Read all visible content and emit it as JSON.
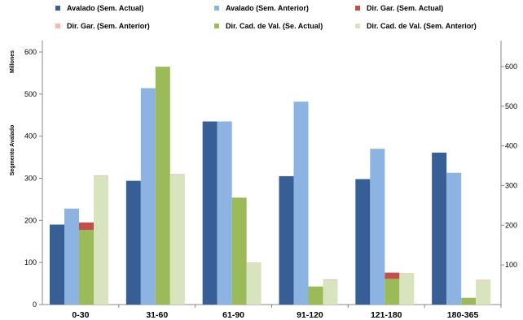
{
  "chart_data": {
    "type": "bar",
    "categories": [
      "0-30",
      "31-60",
      "61-90",
      "91-120",
      "121-180",
      "180-365"
    ],
    "series": [
      {
        "name": "Avalado (Sem. Actual)",
        "color": "#375f95",
        "values": [
          190,
          294,
          435,
          305,
          298,
          361
        ]
      },
      {
        "name": "Avalado (Sem. Anterior)",
        "color": "#8db3e2",
        "values": [
          228,
          514,
          435,
          482,
          370,
          313
        ]
      },
      {
        "name": "Dir. Gar. (Sem. Actual)",
        "color": "#c0504d",
        "stack_on": "Dir. Cad. de Val. (Se. Actual)",
        "values": [
          18,
          0,
          0,
          0,
          15,
          0
        ]
      },
      {
        "name": "Dir. Gar. (Sem. Anterior)",
        "color": "#f2b8b7",
        "stack_on": "Dir. Cad. de Val. (Sem. Anterior)",
        "values": [
          2,
          2,
          1,
          2,
          1,
          2
        ]
      },
      {
        "name": "Dir. Cad. de Val. (Se. Actual)",
        "color": "#9bbb59",
        "values": [
          177,
          565,
          254,
          43,
          61,
          16
        ]
      },
      {
        "name": "Dir. Cad. de Val. (Sem. Anterior)",
        "color": "#d7e4bd",
        "values": [
          305,
          308,
          99,
          58,
          74,
          57
        ]
      }
    ],
    "ylabel": "Segmento Avalado",
    "yunit": "Millones",
    "ylim": [
      0,
      620
    ],
    "yticks": [
      0,
      100,
      200,
      300,
      400,
      500,
      600
    ],
    "ylim_right": [
      0,
      661
    ],
    "yticks_right": [
      100,
      200,
      300,
      400,
      500,
      600
    ],
    "legend_position": "top",
    "grid": false
  }
}
